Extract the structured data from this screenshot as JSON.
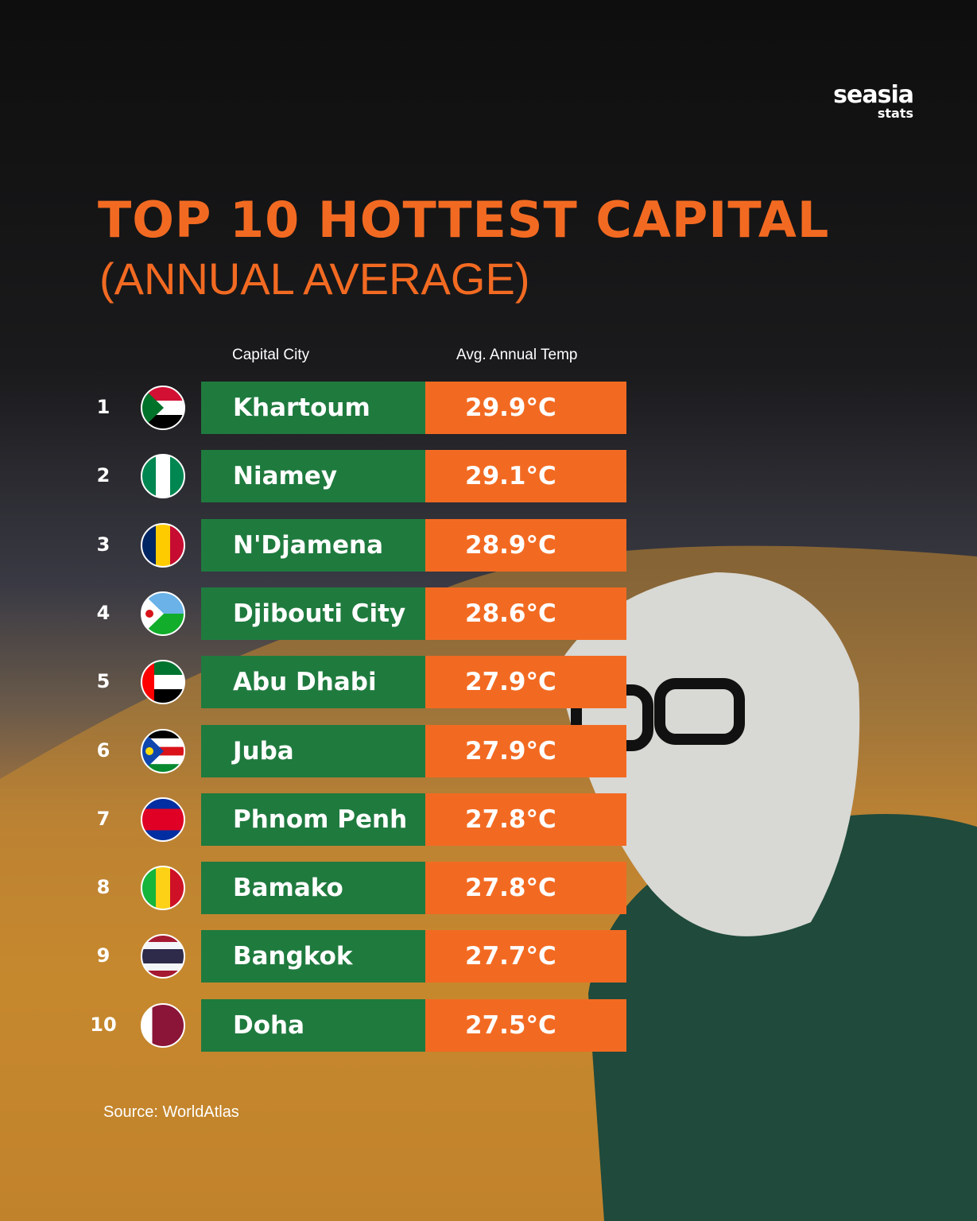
{
  "brand": {
    "name": "seasia",
    "sub": "stats"
  },
  "header": {
    "title": "TOP 10 HOTTEST CAPITAL",
    "subtitle": "(ANNUAL AVERAGE)"
  },
  "table": {
    "columns": [
      "Capital City",
      "Avg. Annual Temp"
    ],
    "rows": [
      {
        "rank": "1",
        "city": "Khartoum",
        "temp": "29.9°C"
      },
      {
        "rank": "2",
        "city": "Niamey",
        "temp": "29.1°C"
      },
      {
        "rank": "3",
        "city": "N'Djamena",
        "temp": "28.9°C"
      },
      {
        "rank": "4",
        "city": "Djibouti City",
        "temp": "28.6°C"
      },
      {
        "rank": "5",
        "city": "Abu Dhabi",
        "temp": "27.9°C"
      },
      {
        "rank": "6",
        "city": "Juba",
        "temp": "27.9°C"
      },
      {
        "rank": "7",
        "city": "Phnom Penh",
        "temp": "27.8°C"
      },
      {
        "rank": "8",
        "city": "Bamako",
        "temp": "27.8°C"
      },
      {
        "rank": "9",
        "city": "Bangkok",
        "temp": "27.7°C"
      },
      {
        "rank": "10",
        "city": "Doha",
        "temp": "27.5°C"
      }
    ]
  },
  "source": "Source: WorldAtlas"
}
